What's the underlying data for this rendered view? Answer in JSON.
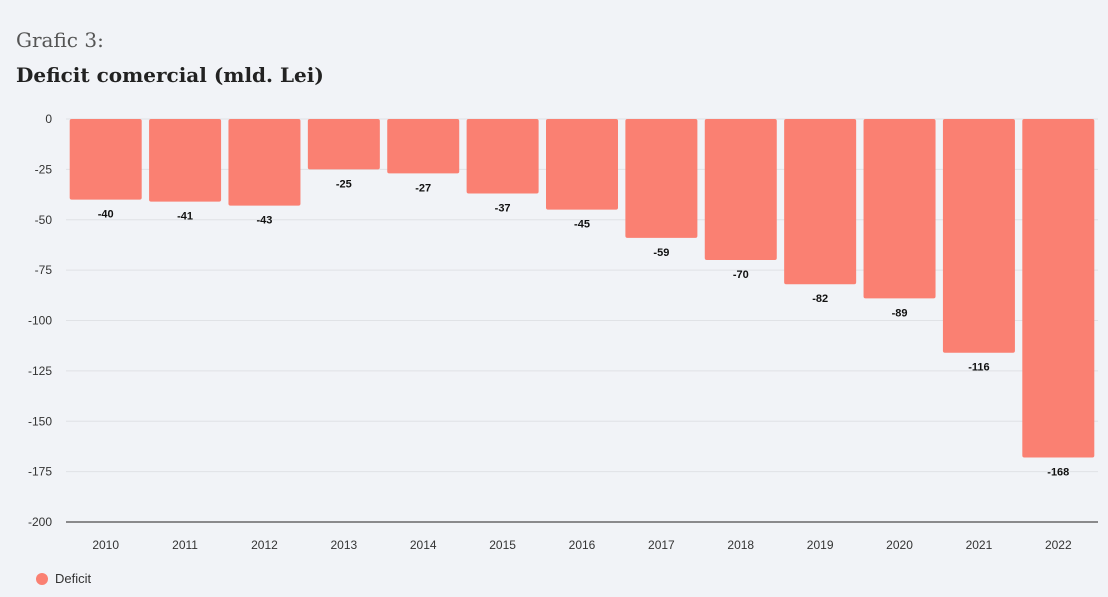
{
  "header": {
    "kicker": "Grafic 3:",
    "title": "Deficit comercial (mld. Lei)"
  },
  "colors": {
    "bar": "#fa8072",
    "axis": "#222222",
    "grid": "#e0e2e6",
    "background": "#f1f3f7"
  },
  "chart_data": {
    "type": "bar",
    "title": "Deficit comercial (mld. Lei)",
    "xlabel": "",
    "ylabel": "",
    "categories": [
      "2010",
      "2011",
      "2012",
      "2013",
      "2014",
      "2015",
      "2016",
      "2017",
      "2018",
      "2019",
      "2020",
      "2021",
      "2022"
    ],
    "series": [
      {
        "name": "Deficit",
        "values": [
          -40,
          -41,
          -43,
          -25,
          -27,
          -37,
          -45,
          -59,
          -70,
          -82,
          -89,
          -116,
          -168
        ],
        "labels": [
          "-40",
          "-41",
          "-43",
          "-25",
          "-27",
          "-37",
          "-45",
          "-59",
          "-70",
          "-82",
          "-89",
          "-116",
          "-168"
        ]
      }
    ],
    "ylim": [
      -200,
      0
    ],
    "yticks": [
      0,
      -25,
      -50,
      -75,
      -100,
      -125,
      -150,
      -175,
      -200
    ],
    "ytick_labels": [
      "0",
      "-25",
      "-50",
      "-75",
      "-100",
      "-125",
      "-150",
      "-175",
      "-200"
    ],
    "grid": true,
    "legend_position": "bottom-left",
    "data_labels": true
  },
  "legend": {
    "items": [
      {
        "label": "Deficit",
        "color": "#fa8072"
      }
    ]
  }
}
